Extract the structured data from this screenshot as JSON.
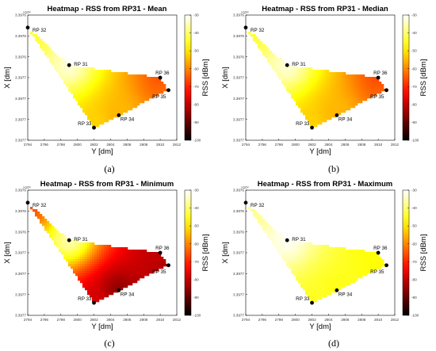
{
  "chart_data": [
    {
      "type": "heatmap",
      "title": "Heatmap - RSS from RP31 - Mean",
      "caption": "(a)",
      "xlabel": "Y [dm]",
      "ylabel": "X [dm]",
      "x_ticks": [
        "2794",
        "2796",
        "2798",
        "2800",
        "2802",
        "2804",
        "2806",
        "2808",
        "2810",
        "2812"
      ],
      "y_ticks": [
        "3.3976",
        "3.3976",
        "3.3976",
        "3.3977",
        "3.3977",
        "3.3977",
        "3.3977"
      ],
      "y_exponent": "×10⁴",
      "colorbar": {
        "label": "RSS [dBm]",
        "ticks": [
          "-30",
          "-40",
          "-50",
          "-60",
          "-70",
          "-80",
          "-90",
          "-100"
        ],
        "min": -100,
        "max": -30
      },
      "points": [
        {
          "label": "RP 31",
          "y": 2799,
          "x": 3.39762,
          "rss": -33
        },
        {
          "label": "RP 32",
          "y": 2794,
          "x": 3.39759,
          "rss": -44
        },
        {
          "label": "RP 33",
          "y": 2802,
          "x": 3.39767,
          "rss": -52
        },
        {
          "label": "RP 34",
          "y": 2805,
          "x": 3.39766,
          "rss": -55
        },
        {
          "label": "RP 35",
          "y": 2811,
          "x": 3.39764,
          "rss": -63
        },
        {
          "label": "RP 36",
          "y": 2810,
          "x": 3.39763,
          "rss": -65
        }
      ]
    },
    {
      "type": "heatmap",
      "title": "Heatmap - RSS from RP31 - Median",
      "caption": "(b)",
      "xlabel": "Y [dm]",
      "ylabel": "X [dm]",
      "x_ticks": [
        "2794",
        "2796",
        "2798",
        "2800",
        "2802",
        "2804",
        "2806",
        "2808",
        "2810",
        "2812"
      ],
      "y_ticks": [
        "3.3976",
        "3.3976",
        "3.3976",
        "3.3977",
        "3.3977",
        "3.3977",
        "3.3977"
      ],
      "y_exponent": "×10⁴",
      "colorbar": {
        "label": "RSS [dBm]",
        "ticks": [
          "-30",
          "-40",
          "-50",
          "-60",
          "-70",
          "-80",
          "-90",
          "-100"
        ],
        "min": -100,
        "max": -30
      },
      "points": [
        {
          "label": "RP 31",
          "y": 2799,
          "x": 3.39762,
          "rss": -33
        },
        {
          "label": "RP 32",
          "y": 2794,
          "x": 3.39759,
          "rss": -44
        },
        {
          "label": "RP 33",
          "y": 2802,
          "x": 3.39767,
          "rss": -52
        },
        {
          "label": "RP 34",
          "y": 2805,
          "x": 3.39766,
          "rss": -55
        },
        {
          "label": "RP 35",
          "y": 2811,
          "x": 3.39764,
          "rss": -64
        },
        {
          "label": "RP 36",
          "y": 2810,
          "x": 3.39763,
          "rss": -66
        }
      ]
    },
    {
      "type": "heatmap",
      "title": "Heatmap - RSS from RP31 - Minimum",
      "caption": "(c)",
      "xlabel": "Y [dm]",
      "ylabel": "X [dm]",
      "x_ticks": [
        "2794",
        "2796",
        "2798",
        "2800",
        "2802",
        "2804",
        "2806",
        "2808",
        "2810",
        "2812"
      ],
      "y_ticks": [
        "3.3976",
        "3.3976",
        "3.3976",
        "3.3977",
        "3.3977",
        "3.3977",
        "3.3977"
      ],
      "y_exponent": "×10⁴",
      "colorbar": {
        "label": "RSS [dBm]",
        "ticks": [
          "-30",
          "-40",
          "-50",
          "-60",
          "-70",
          "-80",
          "-90",
          "-100"
        ],
        "min": -100,
        "max": -30
      },
      "points": [
        {
          "label": "RP 31",
          "y": 2799,
          "x": 3.39762,
          "rss": -36
        },
        {
          "label": "RP 32",
          "y": 2794,
          "x": 3.39759,
          "rss": -66
        },
        {
          "label": "RP 33",
          "y": 2802,
          "x": 3.39767,
          "rss": -78
        },
        {
          "label": "RP 34",
          "y": 2805,
          "x": 3.39766,
          "rss": -85
        },
        {
          "label": "RP 35",
          "y": 2811,
          "x": 3.39764,
          "rss": -82
        },
        {
          "label": "RP 36",
          "y": 2810,
          "x": 3.39763,
          "rss": -80
        }
      ]
    },
    {
      "type": "heatmap",
      "title": "Heatmap - RSS from RP31 - Maximum",
      "caption": "(d)",
      "xlabel": "Y [dm]",
      "ylabel": "X [dm]",
      "x_ticks": [
        "2794",
        "2796",
        "2798",
        "2800",
        "2802",
        "2804",
        "2806",
        "2808",
        "2810",
        "2812"
      ],
      "y_ticks": [
        "3.3976",
        "3.3976",
        "3.3976",
        "3.3977",
        "3.3977",
        "3.3977",
        "3.3977"
      ],
      "y_exponent": "×10⁴",
      "colorbar": {
        "label": "RSS [dBm]",
        "ticks": [
          "-30",
          "-40",
          "-50",
          "-60",
          "-70",
          "-80",
          "-90",
          "-100"
        ],
        "min": -100,
        "max": -30
      },
      "points": [
        {
          "label": "RP 31",
          "y": 2799,
          "x": 3.39762,
          "rss": -31
        },
        {
          "label": "RP 32",
          "y": 2794,
          "x": 3.39759,
          "rss": -38
        },
        {
          "label": "RP 33",
          "y": 2802,
          "x": 3.39767,
          "rss": -45
        },
        {
          "label": "RP 34",
          "y": 2805,
          "x": 3.39766,
          "rss": -46
        },
        {
          "label": "RP 35",
          "y": 2811,
          "x": 3.39764,
          "rss": -48
        },
        {
          "label": "RP 36",
          "y": 2810,
          "x": 3.39763,
          "rss": -47
        }
      ]
    }
  ]
}
